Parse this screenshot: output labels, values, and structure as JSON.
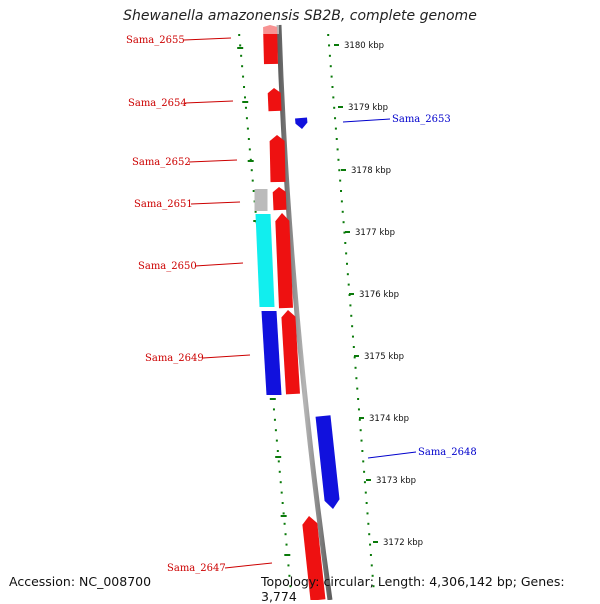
{
  "title": "Shewanella amazonensis SB2B, complete genome",
  "footer": {
    "accession": "Accession: NC_008700",
    "summary": "Topology: circular; Length: 4,306,142 bp; Genes: 3,774"
  },
  "colors": {
    "forward": "#ee1111",
    "reverse": "#1111dd",
    "cyan": "#11eeee",
    "gray": "#bbbbbb",
    "backbone": "#8a8a8a",
    "tick": "#0a7a0a",
    "label_red": "#cc0000",
    "label_blue": "#0000cc"
  },
  "scale_ticks": [
    {
      "label": "3180 kbp",
      "kbp": 3180
    },
    {
      "label": "3179 kbp",
      "kbp": 3179
    },
    {
      "label": "3178 kbp",
      "kbp": 3178
    },
    {
      "label": "3177 kbp",
      "kbp": 3177
    },
    {
      "label": "3176 kbp",
      "kbp": 3176
    },
    {
      "label": "3175 kbp",
      "kbp": 3175
    },
    {
      "label": "3174 kbp",
      "kbp": 3174
    },
    {
      "label": "3173 kbp",
      "kbp": 3173
    },
    {
      "label": "3172 kbp",
      "kbp": 3172
    }
  ],
  "genes": [
    {
      "name": "Sama_2655",
      "strand": "forward",
      "color": "forward"
    },
    {
      "name": "Sama_2654",
      "strand": "forward",
      "color": "forward"
    },
    {
      "name": "Sama_2653",
      "strand": "reverse",
      "color": "reverse"
    },
    {
      "name": "Sama_2652",
      "strand": "forward",
      "color": "forward"
    },
    {
      "name": "Sama_2651",
      "strand": "forward",
      "color": "forward"
    },
    {
      "name": "Sama_2650",
      "strand": "forward",
      "color": "forward"
    },
    {
      "name": "Sama_2649",
      "strand": "forward",
      "color": "forward"
    },
    {
      "name": "Sama_2648",
      "strand": "reverse",
      "color": "reverse"
    },
    {
      "name": "Sama_2647",
      "strand": "forward",
      "color": "forward"
    }
  ],
  "features": [
    {
      "name": "feature-gray",
      "color": "gray"
    },
    {
      "name": "feature-cyan",
      "color": "cyan"
    },
    {
      "name": "feature-blue",
      "color": "reverse"
    }
  ]
}
